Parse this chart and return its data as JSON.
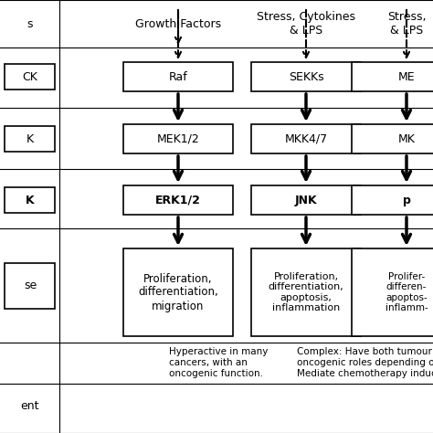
{
  "bg_color": "#ffffff",
  "col1_header": "Growth Factors",
  "col2_header": "Stress, Cytokines\n& LPS",
  "col3_header": "Stress,\n& LPS",
  "left_labels": [
    "s",
    "CK",
    "K",
    "K",
    "se",
    "ent"
  ],
  "col1_boxes": [
    "Raf",
    "MEK1/2",
    "ERK1/2",
    "Proliferation,\ndifferentiation,\nmigration"
  ],
  "col2_boxes": [
    "SEKKs",
    "MKK4/7",
    "JNK",
    "Proliferation,\ndifferentiation,\napoptosis,\ninflammation"
  ],
  "col3_boxes": [
    "ME",
    "MK",
    "p",
    "Prolifer-\ndifferen-\napoptos-\ninflamm-"
  ],
  "col1_bottom": "Hyperactive in many\ncancers, with an\noncogenic function.",
  "col2_bottom": "Complex: Have both tumour suppr...\noncogenic roles depending on tum-\nMediate chemotherapy induced ap..."
}
